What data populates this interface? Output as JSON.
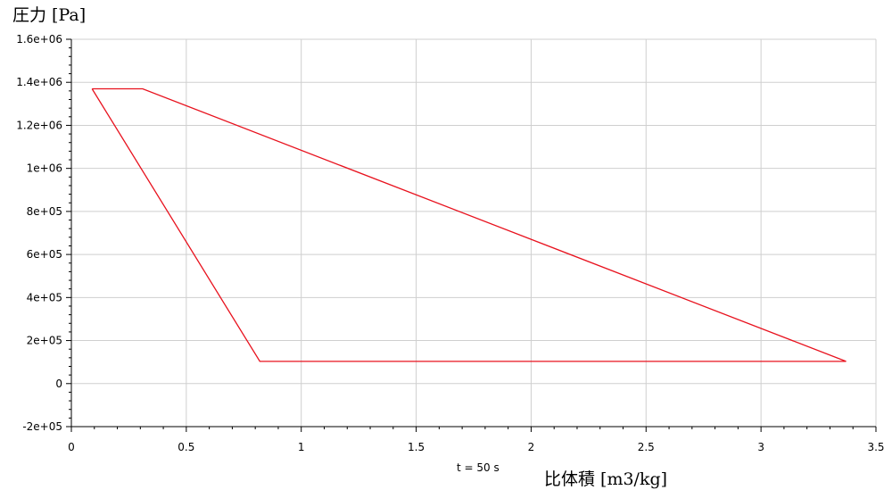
{
  "chart_data": {
    "type": "line",
    "ylabel": "圧力 [Pa]",
    "xlabel": "比体積 [m3/kg]",
    "annotation": "t = 50 s",
    "xlim": [
      0,
      3.5
    ],
    "ylim": [
      -200000,
      1600000
    ],
    "xticks": [
      0,
      0.5,
      1,
      1.5,
      2,
      2.5,
      3,
      3.5
    ],
    "xtick_labels": [
      "0",
      "0.5",
      "1",
      "1.5",
      "2",
      "2.5",
      "3",
      "3.5"
    ],
    "yticks": [
      -200000,
      0,
      200000,
      400000,
      600000,
      800000,
      1000000,
      1200000,
      1400000,
      1600000
    ],
    "ytick_labels": [
      "-2e+05",
      "0",
      "2e+05",
      "4e+05",
      "6e+05",
      "8e+05",
      "1e+06",
      "1.2e+06",
      "1.4e+06",
      "1.6e+06"
    ],
    "grid": true,
    "series": [
      {
        "color": "#e8121e",
        "x": [
          0.09,
          0.31,
          3.37,
          0.82,
          0.09
        ],
        "y": [
          1370000,
          1370000,
          103000,
          103000,
          1370000
        ]
      }
    ]
  }
}
